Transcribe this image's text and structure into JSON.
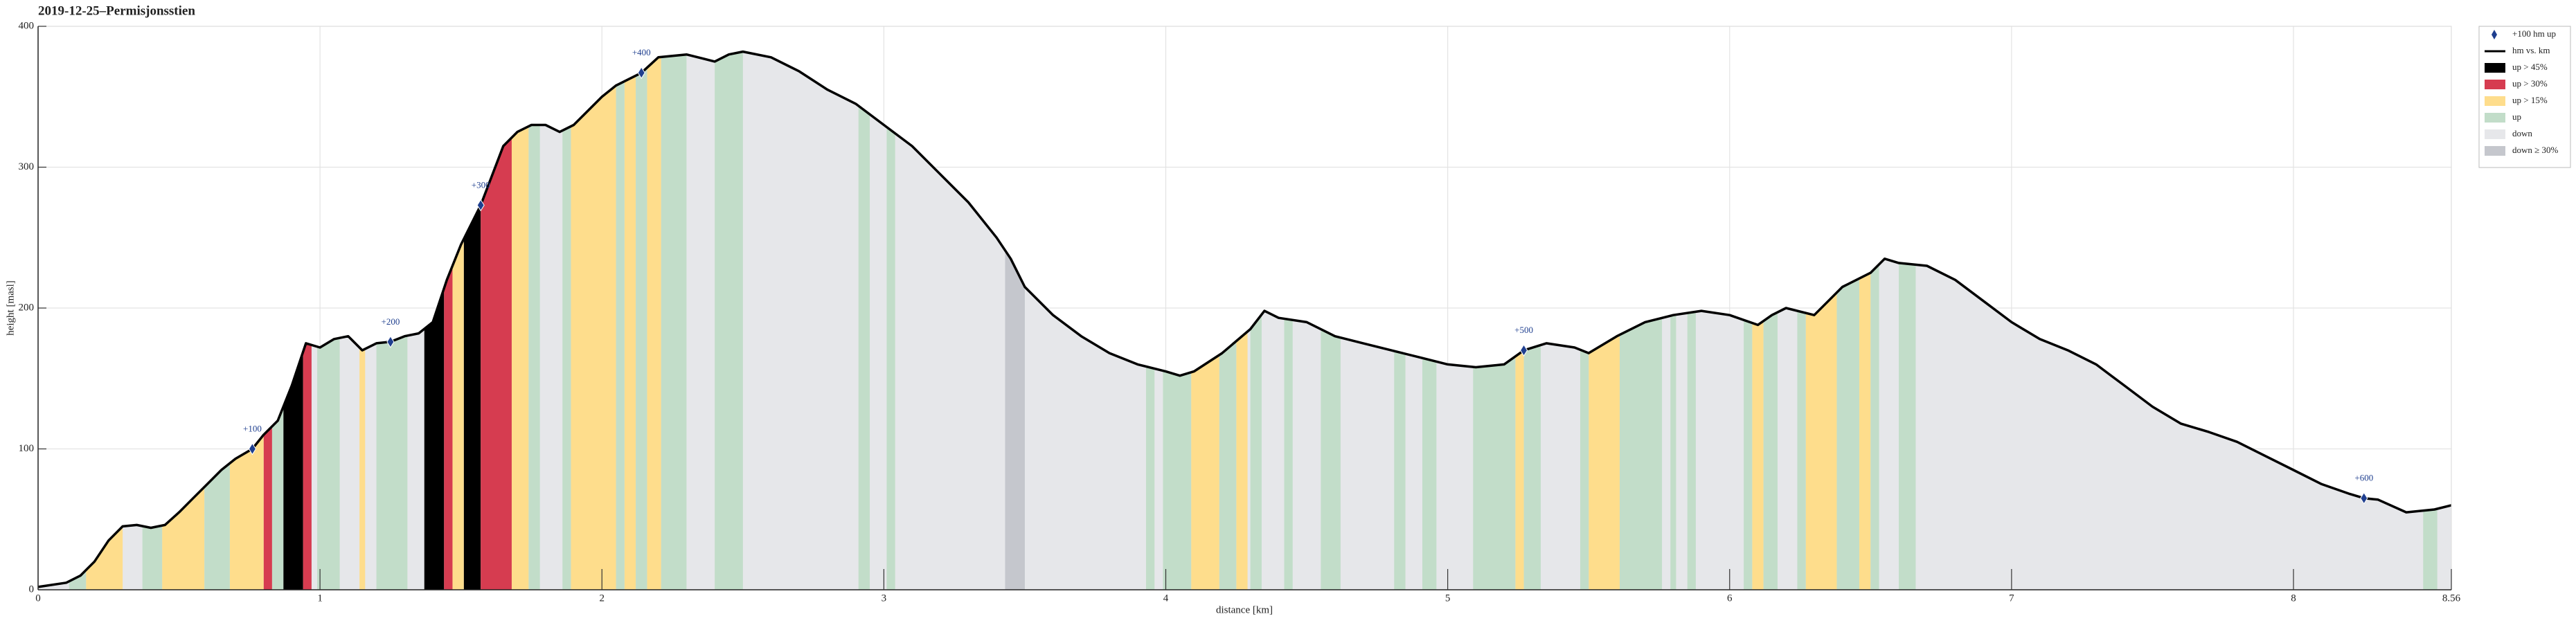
{
  "chart_data": {
    "type": "elevation-profile",
    "title": "2019-12-25–Permisjonsstien",
    "x_label": "distance [km]",
    "y_label": "height [masl]",
    "xlim": [
      0,
      8.56
    ],
    "ylim": [
      0,
      400
    ],
    "xticks": [
      0,
      1,
      2,
      3,
      4,
      5,
      6,
      7,
      8,
      8.56
    ],
    "yticks": [
      0,
      100,
      200,
      300,
      400
    ],
    "grid": true,
    "legend": "upper right",
    "markers": {
      "name": "+100 hm up",
      "color": "#1f3f8f",
      "x": [
        0.76,
        1.25,
        1.57,
        2.14,
        5.27,
        8.25
      ],
      "values": [
        100,
        176,
        273,
        367,
        170,
        65
      ],
      "labels": [
        "+100",
        "+200",
        "+300",
        "+400",
        "+500",
        "+600"
      ]
    },
    "profile": {
      "name": "hm vs. km",
      "color": "#000000",
      "x": [
        0,
        0.1,
        0.15,
        0.2,
        0.25,
        0.3,
        0.35,
        0.4,
        0.45,
        0.5,
        0.55,
        0.6,
        0.65,
        0.7,
        0.76,
        0.8,
        0.85,
        0.9,
        0.95,
        1.0,
        1.05,
        1.1,
        1.15,
        1.2,
        1.25,
        1.3,
        1.35,
        1.4,
        1.45,
        1.5,
        1.57,
        1.65,
        1.7,
        1.75,
        1.8,
        1.85,
        1.9,
        1.95,
        2.0,
        2.05,
        2.14,
        2.2,
        2.3,
        2.4,
        2.45,
        2.5,
        2.6,
        2.7,
        2.8,
        2.9,
        3.0,
        3.1,
        3.2,
        3.3,
        3.4,
        3.45,
        3.5,
        3.6,
        3.7,
        3.8,
        3.9,
        4.0,
        4.05,
        4.1,
        4.2,
        4.3,
        4.35,
        4.4,
        4.5,
        4.6,
        4.7,
        4.8,
        4.9,
        5.0,
        5.1,
        5.2,
        5.27,
        5.35,
        5.45,
        5.5,
        5.6,
        5.7,
        5.8,
        5.9,
        6.0,
        6.1,
        6.15,
        6.2,
        6.3,
        6.35,
        6.4,
        6.5,
        6.55,
        6.6,
        6.7,
        6.8,
        6.9,
        7.0,
        7.1,
        7.2,
        7.3,
        7.4,
        7.5,
        7.6,
        7.7,
        7.8,
        7.9,
        8.0,
        8.1,
        8.2,
        8.25,
        8.3,
        8.4,
        8.5,
        8.56
      ],
      "values": [
        2,
        5,
        10,
        20,
        35,
        45,
        46,
        44,
        46,
        55,
        65,
        75,
        85,
        93,
        100,
        110,
        120,
        145,
        175,
        172,
        178,
        180,
        170,
        175,
        176,
        180,
        182,
        190,
        220,
        245,
        273,
        315,
        325,
        330,
        330,
        325,
        330,
        340,
        350,
        358,
        367,
        378,
        380,
        375,
        380,
        382,
        378,
        368,
        355,
        345,
        330,
        315,
        295,
        275,
        250,
        235,
        215,
        195,
        180,
        168,
        160,
        155,
        152,
        155,
        168,
        185,
        198,
        193,
        190,
        180,
        175,
        170,
        165,
        160,
        158,
        160,
        170,
        175,
        172,
        168,
        180,
        190,
        195,
        198,
        195,
        188,
        195,
        200,
        195,
        205,
        215,
        225,
        235,
        232,
        230,
        220,
        205,
        190,
        178,
        170,
        160,
        145,
        130,
        118,
        112,
        105,
        95,
        85,
        75,
        68,
        65,
        64,
        55,
        57,
        60
      ]
    },
    "series": [
      {
        "name": "up > 45%",
        "color": "#000000",
        "ranges": [
          [
            0.87,
            0.94
          ],
          [
            1.37,
            1.44
          ],
          [
            1.51,
            1.57
          ]
        ]
      },
      {
        "name": "up > 30%",
        "color": "#d63c50",
        "ranges": [
          [
            0.8,
            0.83
          ],
          [
            0.94,
            0.97
          ],
          [
            1.44,
            1.47
          ],
          [
            1.57,
            1.68
          ]
        ]
      },
      {
        "name": "up > 15%",
        "color": "#fedd8c",
        "ranges": [
          [
            0.17,
            0.3
          ],
          [
            0.44,
            0.59
          ],
          [
            0.68,
            0.8
          ],
          [
            1.14,
            1.16
          ],
          [
            1.47,
            1.51
          ],
          [
            1.68,
            1.74
          ],
          [
            1.89,
            2.05
          ],
          [
            2.08,
            2.12
          ],
          [
            2.16,
            2.21
          ],
          [
            4.09,
            4.19
          ],
          [
            4.25,
            4.29
          ],
          [
            5.24,
            5.27
          ],
          [
            5.5,
            5.61
          ],
          [
            6.08,
            6.12
          ],
          [
            6.27,
            6.38
          ],
          [
            6.46,
            6.5
          ]
        ]
      },
      {
        "name": "up",
        "color": "#c2ddc9",
        "ranges": [
          [
            0.11,
            0.17
          ],
          [
            0.37,
            0.44
          ],
          [
            0.59,
            0.68
          ],
          [
            0.83,
            0.87
          ],
          [
            0.99,
            1.07
          ],
          [
            1.2,
            1.31
          ],
          [
            1.74,
            1.78
          ],
          [
            1.86,
            1.89
          ],
          [
            2.05,
            2.08
          ],
          [
            2.12,
            2.16
          ],
          [
            2.21,
            2.3
          ],
          [
            2.4,
            2.5
          ],
          [
            2.91,
            2.95
          ],
          [
            3.01,
            3.04
          ],
          [
            3.93,
            3.96
          ],
          [
            3.99,
            4.09
          ],
          [
            4.19,
            4.25
          ],
          [
            4.3,
            4.34
          ],
          [
            4.42,
            4.45
          ],
          [
            4.55,
            4.62
          ],
          [
            4.81,
            4.85
          ],
          [
            4.91,
            4.96
          ],
          [
            5.09,
            5.24
          ],
          [
            5.27,
            5.33
          ],
          [
            5.47,
            5.5
          ],
          [
            5.61,
            5.76
          ],
          [
            5.79,
            5.81
          ],
          [
            5.85,
            5.88
          ],
          [
            6.05,
            6.08
          ],
          [
            6.12,
            6.17
          ],
          [
            6.24,
            6.27
          ],
          [
            6.38,
            6.46
          ],
          [
            6.5,
            6.53
          ],
          [
            6.6,
            6.66
          ],
          [
            8.46,
            8.51
          ]
        ]
      },
      {
        "name": "down",
        "color": "#e6e7ea",
        "ranges": []
      },
      {
        "name": "down ≥ 30%",
        "color": "#c5c7cd",
        "ranges": [
          [
            3.43,
            3.5
          ]
        ]
      }
    ]
  }
}
